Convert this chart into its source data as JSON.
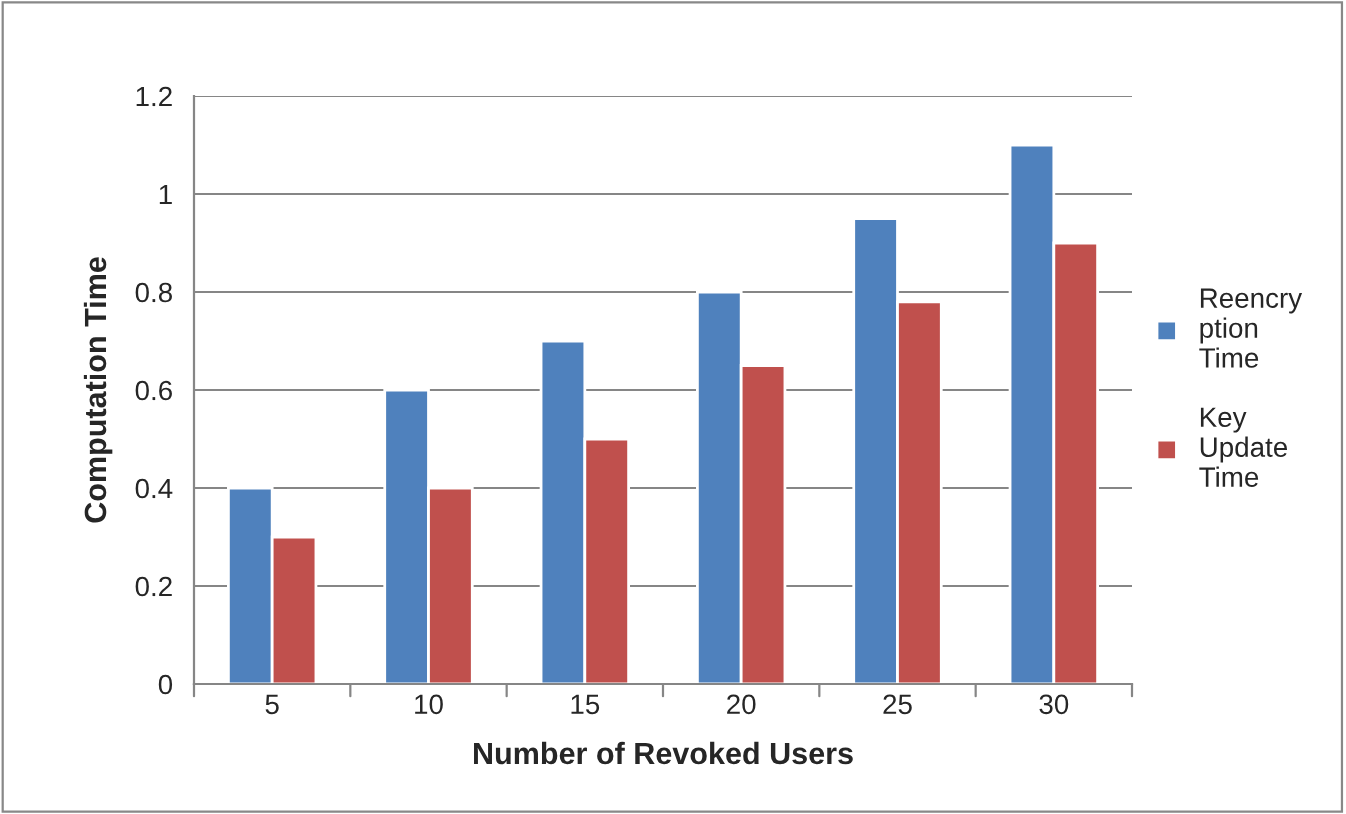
{
  "chart_data": {
    "type": "bar",
    "xlabel": "Number of Revoked Users",
    "ylabel": "Computation Time",
    "categories": [
      "5",
      "10",
      "15",
      "20",
      "25",
      "30"
    ],
    "series": [
      {
        "name": "Reencry\nption\nTime",
        "color": "#4f81bd",
        "values": [
          0.4,
          0.6,
          0.7,
          0.8,
          0.95,
          1.1
        ]
      },
      {
        "name": "Key\nUpdate\nTime",
        "color": "#c0504d",
        "values": [
          0.3,
          0.4,
          0.5,
          0.65,
          0.78,
          0.9
        ]
      }
    ],
    "ylim": [
      0,
      1.2
    ],
    "yticks": [
      0,
      0.2,
      0.4,
      0.6,
      0.8,
      1,
      1.2
    ],
    "grid": "y",
    "legend": "right"
  }
}
